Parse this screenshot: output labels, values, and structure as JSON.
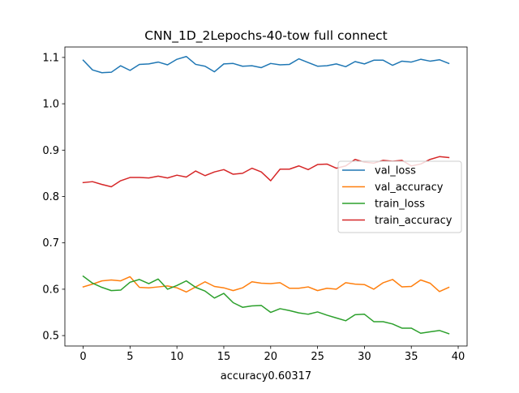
{
  "chart_data": {
    "type": "line",
    "title": "CNN_1D_2Lepochs-40-tow full connect",
    "xlabel": "accuracy0.60317",
    "ylabel": "",
    "xlim": [
      -1.95,
      40.95
    ],
    "ylim": [
      0.4775,
      1.1225
    ],
    "xticks": [
      0,
      5,
      10,
      15,
      20,
      25,
      30,
      35,
      40
    ],
    "yticks": [
      0.5,
      0.6,
      0.7,
      0.8,
      0.9,
      1.0,
      1.1
    ],
    "xtick_labels": [
      "0",
      "5",
      "10",
      "15",
      "20",
      "25",
      "30",
      "35",
      "40"
    ],
    "ytick_labels": [
      "0.5",
      "0.6",
      "0.7",
      "0.8",
      "0.9",
      "1.0",
      "1.1"
    ],
    "grid": false,
    "legend_position": "center-right",
    "x": [
      0,
      1,
      2,
      3,
      4,
      5,
      6,
      7,
      8,
      9,
      10,
      11,
      12,
      13,
      14,
      15,
      16,
      17,
      18,
      19,
      20,
      21,
      22,
      23,
      24,
      25,
      26,
      27,
      28,
      29,
      30,
      31,
      32,
      33,
      34,
      35,
      36,
      37,
      38,
      39
    ],
    "series": [
      {
        "name": "val_loss",
        "color": "#1f77b4",
        "values": [
          1.094,
          1.073,
          1.067,
          1.068,
          1.082,
          1.072,
          1.085,
          1.086,
          1.09,
          1.084,
          1.096,
          1.102,
          1.085,
          1.081,
          1.069,
          1.086,
          1.087,
          1.081,
          1.082,
          1.078,
          1.087,
          1.084,
          1.085,
          1.097,
          1.089,
          1.081,
          1.082,
          1.086,
          1.08,
          1.091,
          1.086,
          1.094,
          1.094,
          1.083,
          1.092,
          1.09,
          1.096,
          1.092,
          1.095,
          1.087
        ]
      },
      {
        "name": "val_accuracy",
        "color": "#ff7f0e",
        "values": [
          0.605,
          0.611,
          0.618,
          0.62,
          0.618,
          0.627,
          0.604,
          0.603,
          0.605,
          0.607,
          0.603,
          0.594,
          0.605,
          0.616,
          0.606,
          0.603,
          0.597,
          0.603,
          0.616,
          0.613,
          0.612,
          0.614,
          0.602,
          0.602,
          0.605,
          0.597,
          0.602,
          0.6,
          0.614,
          0.611,
          0.61,
          0.6,
          0.614,
          0.621,
          0.605,
          0.606,
          0.62,
          0.613,
          0.595,
          0.604
        ]
      },
      {
        "name": "train_loss",
        "color": "#2ca02c",
        "values": [
          0.628,
          0.613,
          0.604,
          0.597,
          0.598,
          0.615,
          0.621,
          0.612,
          0.622,
          0.6,
          0.608,
          0.618,
          0.604,
          0.596,
          0.581,
          0.591,
          0.571,
          0.561,
          0.564,
          0.565,
          0.55,
          0.558,
          0.554,
          0.549,
          0.546,
          0.551,
          0.544,
          0.538,
          0.532,
          0.545,
          0.546,
          0.53,
          0.53,
          0.525,
          0.516,
          0.516,
          0.505,
          0.508,
          0.511,
          0.504
        ]
      },
      {
        "name": "train_accuracy",
        "color": "#d62728",
        "values": [
          0.83,
          0.832,
          0.826,
          0.821,
          0.834,
          0.841,
          0.841,
          0.84,
          0.844,
          0.84,
          0.846,
          0.842,
          0.855,
          0.845,
          0.853,
          0.858,
          0.848,
          0.85,
          0.861,
          0.853,
          0.834,
          0.859,
          0.859,
          0.866,
          0.858,
          0.869,
          0.87,
          0.861,
          0.866,
          0.88,
          0.874,
          0.872,
          0.878,
          0.876,
          0.878,
          0.866,
          0.87,
          0.88,
          0.886,
          0.884
        ]
      }
    ]
  }
}
